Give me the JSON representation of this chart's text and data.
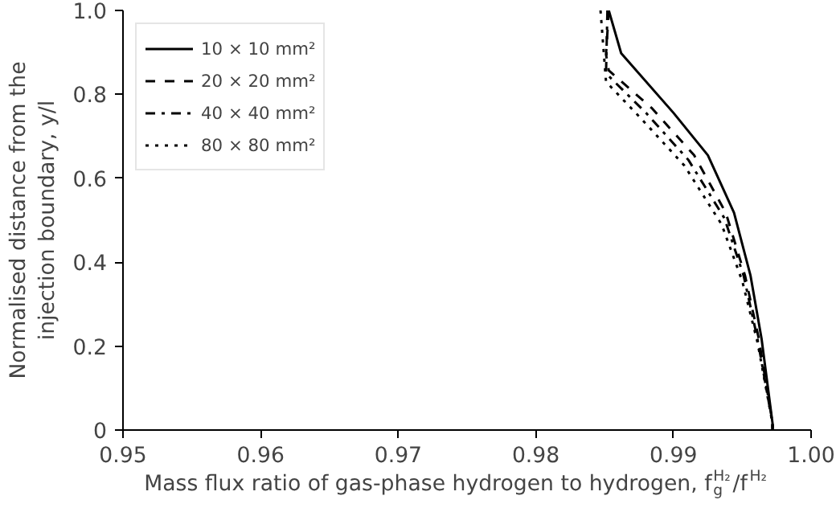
{
  "chart_data": {
    "type": "line",
    "xlabel": "Mass flux ratio of gas-phase hydrogen to hydrogen, f$_{g}$$^{H₂}$/f$^{H₂}$",
    "ylabel": "Normalised distance from the\ninjection boundary, y/l",
    "xlim": [
      0.95,
      1.0
    ],
    "ylim": [
      0,
      1.0
    ],
    "xticks": [
      0.95,
      0.96,
      0.97,
      0.98,
      0.99,
      {
        "value": 1.0,
        "label": "1.00"
      }
    ],
    "yticks": [
      0,
      0.2,
      0.4,
      0.6,
      0.8,
      {
        "value": 1.0,
        "label": "1.0"
      }
    ],
    "grid": false,
    "legend": "top left",
    "marker": "none",
    "series": [
      {
        "name": "10 × 10 mm²",
        "color": "#000000",
        "line_style": "solid",
        "x": [
          0.9853,
          0.9862,
          0.99,
          0.9925,
          0.9944,
          0.9956,
          0.9964,
          0.9972,
          0.9972
        ],
        "values": [
          1.0,
          0.898,
          0.756,
          0.655,
          0.518,
          0.368,
          0.218,
          0.016,
          0
        ]
      },
      {
        "name": "20 × 20 mm²",
        "color": "#000000",
        "line_style": "dashed",
        "x": [
          0.9853,
          0.9851,
          0.9853,
          0.9884,
          0.9915,
          0.9938,
          0.9952,
          0.9962,
          0.9972,
          0.9972
        ],
        "values": [
          1.0,
          0.895,
          0.857,
          0.768,
          0.655,
          0.518,
          0.368,
          0.218,
          0.016,
          0
        ]
      },
      {
        "name": "40 × 40 mm²",
        "color": "#000000",
        "line_style": "dashdot",
        "x": [
          0.9852,
          0.9851,
          0.988,
          0.9911,
          0.9937,
          0.9951,
          0.9961,
          0.9972,
          0.9972
        ],
        "values": [
          1.0,
          0.85,
          0.756,
          0.643,
          0.505,
          0.368,
          0.218,
          0.016,
          0
        ]
      },
      {
        "name": "80 × 80 mm²",
        "color": "#000000",
        "line_style": "dotted",
        "x": [
          0.9847,
          0.9851,
          0.9876,
          0.9908,
          0.9935,
          0.995,
          0.9961,
          0.9972,
          0.9972
        ],
        "values": [
          1.0,
          0.83,
          0.744,
          0.63,
          0.49,
          0.355,
          0.21,
          0.016,
          0
        ]
      }
    ]
  }
}
